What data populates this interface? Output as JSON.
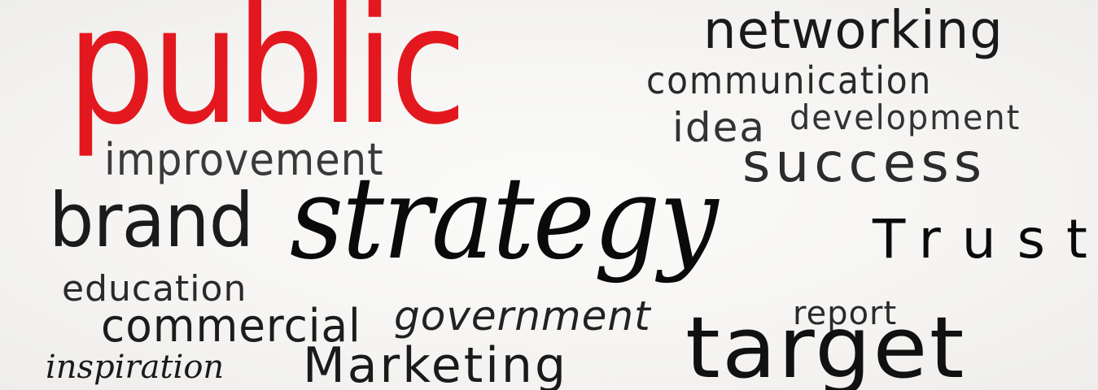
{
  "words": {
    "public": "public",
    "improvement": "improvement",
    "brand": "brand",
    "strategy": "strategy",
    "education": "education",
    "commercial": "commercial",
    "inspiration": "inspiration",
    "government": "government",
    "marketing": "Marketing",
    "networking": "networking",
    "communication": "communication",
    "idea": "idea",
    "development": "development",
    "success": "success",
    "trust": "Trust",
    "report": "report",
    "target": "target"
  },
  "colors": {
    "accent_red": "#e3181f",
    "text_dark": "#1a1a1a",
    "background": "#f7f6f4"
  }
}
